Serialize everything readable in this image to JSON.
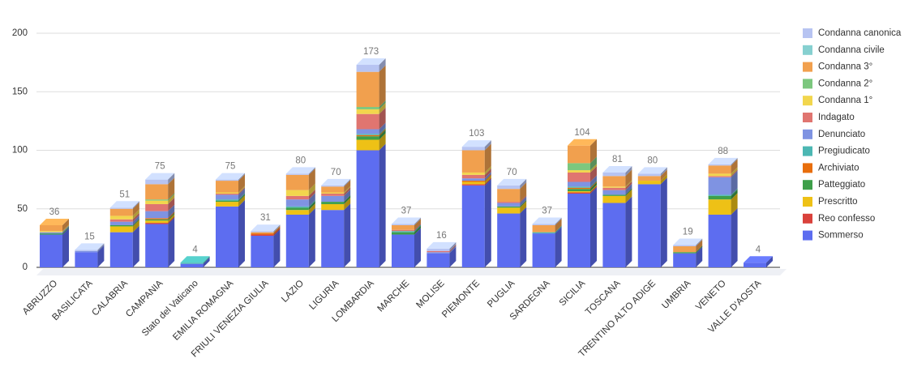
{
  "chart_data": {
    "type": "bar3d",
    "stacked": true,
    "grid": true,
    "categories": [
      "ABRUZZO",
      "BASILICATA",
      "CALABRIA",
      "CAMPANIA",
      "Stato del Vaticano",
      "EMILIA ROMAGNA",
      "FRIULI VENEZIA GIULIA",
      "LAZIO",
      "LIGURIA",
      "LOMBARDIA",
      "MARCHE",
      "MOLISE",
      "PIEMONTE",
      "PUGLIA",
      "SARDEGNA",
      "SICILIA",
      "TOSCANA",
      "TRENTINO ALTO ADIGE",
      "UMBRIA",
      "VENETO",
      "VALLE D'AOSTA"
    ],
    "totals": [
      36,
      15,
      51,
      75,
      4,
      75,
      31,
      80,
      70,
      173,
      37,
      16,
      103,
      70,
      37,
      104,
      81,
      80,
      19,
      88,
      4
    ],
    "ylim": [
      0,
      200
    ],
    "yticks": [
      0,
      50,
      100,
      150,
      200
    ],
    "series": [
      {
        "name": "Sommerso",
        "color": "#5d6df0",
        "values": [
          28,
          13,
          30,
          37,
          3,
          52,
          27,
          45,
          49,
          100,
          28,
          12,
          70,
          46,
          29,
          63,
          55,
          71,
          12,
          45,
          4
        ]
      },
      {
        "name": "Reo confesso",
        "color": "#d9413b",
        "values": [
          0,
          0,
          0,
          1,
          0,
          0,
          1,
          0,
          0,
          0,
          0,
          0,
          1,
          0,
          0,
          1,
          0,
          0,
          0,
          0,
          0
        ]
      },
      {
        "name": "Prescritto",
        "color": "#eec116",
        "values": [
          0,
          0,
          5,
          2,
          0,
          4,
          0,
          4,
          5,
          9,
          0,
          0,
          2,
          5,
          0,
          1,
          6,
          3,
          0,
          13,
          0
        ]
      },
      {
        "name": "Patteggiato",
        "color": "#3e9f4a",
        "values": [
          1,
          0,
          1,
          1,
          0,
          1,
          0,
          2,
          2,
          3,
          2,
          0,
          0,
          1,
          0,
          2,
          1,
          0,
          1,
          3,
          0
        ]
      },
      {
        "name": "Archiviato",
        "color": "#e86e0c",
        "values": [
          0,
          0,
          0,
          1,
          0,
          0,
          1,
          0,
          0,
          1,
          0,
          0,
          1,
          0,
          0,
          1,
          0,
          0,
          0,
          0,
          0
        ]
      },
      {
        "name": "Pregiudicato",
        "color": "#4cb7b3",
        "values": [
          0,
          0,
          0,
          0,
          1,
          1,
          0,
          1,
          0,
          1,
          1,
          0,
          0,
          0,
          1,
          1,
          0,
          0,
          0,
          1,
          0
        ]
      },
      {
        "name": "Denunciato",
        "color": "#7f93e2",
        "values": [
          1,
          1,
          3,
          6,
          0,
          4,
          0,
          6,
          5,
          4,
          0,
          1,
          2,
          3,
          0,
          4,
          4,
          0,
          0,
          15,
          0
        ]
      },
      {
        "name": "Indagato",
        "color": "#e07570",
        "values": [
          0,
          0,
          2,
          6,
          0,
          1,
          0,
          3,
          2,
          13,
          1,
          1,
          3,
          1,
          0,
          8,
          2,
          0,
          0,
          1,
          0
        ]
      },
      {
        "name": "Condanna 1°",
        "color": "#f2d64d",
        "values": [
          1,
          0,
          3,
          3,
          0,
          1,
          0,
          5,
          1,
          4,
          0,
          0,
          2,
          0,
          0,
          2,
          1,
          0,
          0,
          2,
          0
        ]
      },
      {
        "name": "Condanna 2°",
        "color": "#7cc77e",
        "values": [
          0,
          0,
          0,
          1,
          0,
          0,
          0,
          0,
          0,
          2,
          0,
          0,
          0,
          0,
          0,
          6,
          0,
          0,
          0,
          0,
          0
        ]
      },
      {
        "name": "Condanna 3°",
        "color": "#f1a04e",
        "values": [
          5,
          0,
          6,
          13,
          0,
          10,
          1,
          13,
          5,
          30,
          4,
          0,
          19,
          11,
          6,
          15,
          9,
          4,
          5,
          7,
          0
        ]
      },
      {
        "name": "Condanna civile",
        "color": "#86d0d0",
        "values": [
          0,
          0,
          0,
          0,
          0,
          0,
          0,
          0,
          0,
          0,
          0,
          0,
          0,
          0,
          0,
          0,
          0,
          0,
          0,
          0,
          0
        ]
      },
      {
        "name": "Condanna canonica",
        "color": "#b7c4f2",
        "values": [
          0,
          1,
          1,
          4,
          0,
          1,
          1,
          1,
          1,
          6,
          1,
          2,
          3,
          3,
          1,
          0,
          3,
          2,
          1,
          1,
          0
        ]
      }
    ]
  }
}
